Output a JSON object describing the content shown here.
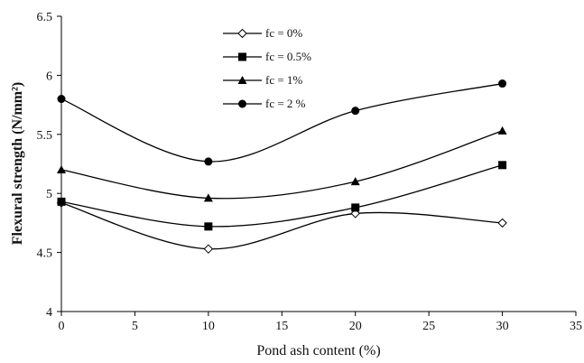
{
  "chart_data": {
    "type": "line",
    "title": "",
    "xlabel": "Pond ash content (%)",
    "ylabel": "Flexural  strength  (N/mm²)",
    "xlim": [
      0,
      35
    ],
    "ylim": [
      4,
      6.5
    ],
    "x_ticks": [
      "0",
      "5",
      "10",
      "15",
      "20",
      "25",
      "30",
      "35"
    ],
    "y_ticks": [
      "4",
      "4.5",
      "5",
      "5.5",
      "6",
      "6.5"
    ],
    "grid": false,
    "legend_position": "top-center",
    "x": [
      0,
      10,
      20,
      30
    ],
    "series": [
      {
        "name": "fc = 0%",
        "marker": "open-diamond",
        "values": [
          4.92,
          4.53,
          4.83,
          4.75
        ]
      },
      {
        "name": "fc = 0.5%",
        "marker": "filled-square",
        "values": [
          4.93,
          4.72,
          4.88,
          5.24
        ]
      },
      {
        "name": "fc = 1%",
        "marker": "filled-triangle",
        "values": [
          5.2,
          4.96,
          5.1,
          5.53
        ]
      },
      {
        "name": "fc = 2 %",
        "marker": "filled-circle",
        "values": [
          5.8,
          5.27,
          5.7,
          5.93
        ]
      }
    ]
  }
}
